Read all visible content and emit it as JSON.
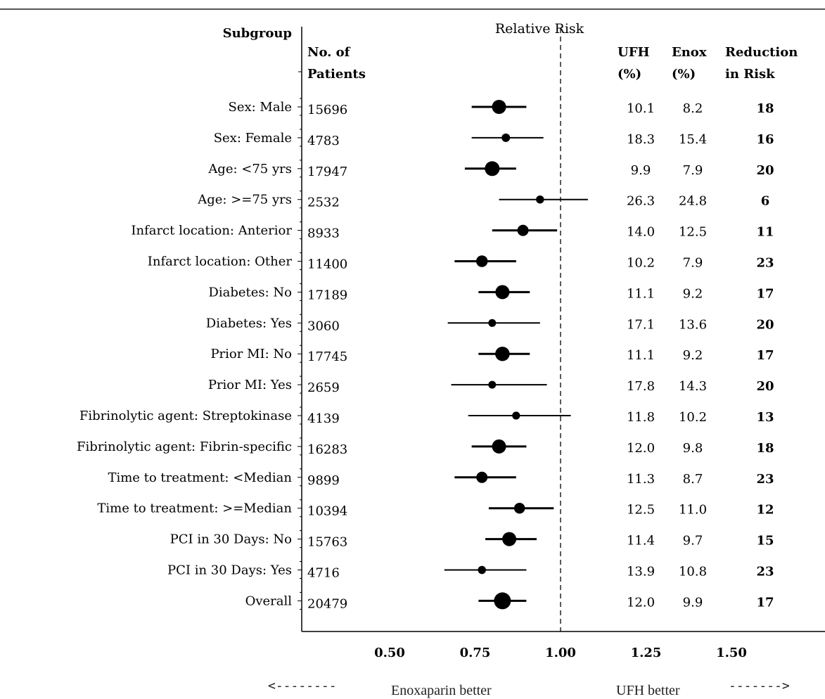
{
  "chart_data": {
    "type": "forest",
    "title": "Relative Risk",
    "headers": {
      "subgroup": "Subgroup",
      "patients_line1": "No. of",
      "patients_line2": "Patients",
      "ufh_line1": "UFH",
      "ufh_line2": "(%)",
      "enox_line1": "Enox",
      "enox_line2": "(%)",
      "reduction_line1": "Reduction",
      "reduction_line2": "in Risk"
    },
    "x_ticks": [
      "0.50",
      "0.75",
      "1.00",
      "1.25",
      "1.50"
    ],
    "x_tick_values": [
      0.5,
      0.75,
      1.0,
      1.25,
      1.5
    ],
    "xlim": [
      0.28,
      1.68
    ],
    "reference_line": 1.0,
    "footer": {
      "left_arrow": "<--------",
      "left_label": "Enoxaparin better",
      "right_label": "UFH  better",
      "right_arrow": "------->"
    },
    "rows": [
      {
        "label": "Sex: Male",
        "n": "15696",
        "rr": 0.82,
        "lo": 0.74,
        "hi": 0.9,
        "ufh": "10.1",
        "enox": "8.2",
        "reduction": "18",
        "weight": 1.0
      },
      {
        "label": "Sex: Female",
        "n": "4783",
        "rr": 0.84,
        "lo": 0.74,
        "hi": 0.95,
        "ufh": "18.3",
        "enox": "15.4",
        "reduction": "16",
        "weight": 0.2
      },
      {
        "label": "Age: <75 yrs",
        "n": "17947",
        "rr": 0.8,
        "lo": 0.72,
        "hi": 0.87,
        "ufh": "9.9",
        "enox": "7.9",
        "reduction": "20",
        "weight": 1.1
      },
      {
        "label": "Age: >=75 yrs",
        "n": "2532",
        "rr": 0.94,
        "lo": 0.82,
        "hi": 1.08,
        "ufh": "26.3",
        "enox": "24.8",
        "reduction": "6",
        "weight": 0.15
      },
      {
        "label": "Infarct location: Anterior",
        "n": "8933",
        "rr": 0.89,
        "lo": 0.8,
        "hi": 0.99,
        "ufh": "14.0",
        "enox": "12.5",
        "reduction": "11",
        "weight": 0.6
      },
      {
        "label": "Infarct location: Other",
        "n": "11400",
        "rr": 0.77,
        "lo": 0.69,
        "hi": 0.87,
        "ufh": "10.2",
        "enox": "7.9",
        "reduction": "23",
        "weight": 0.65
      },
      {
        "label": "Diabetes: No",
        "n": "17189",
        "rr": 0.83,
        "lo": 0.76,
        "hi": 0.91,
        "ufh": "11.1",
        "enox": "9.2",
        "reduction": "17",
        "weight": 1.0
      },
      {
        "label": "Diabetes: Yes",
        "n": "3060",
        "rr": 0.8,
        "lo": 0.67,
        "hi": 0.94,
        "ufh": "17.1",
        "enox": "13.6",
        "reduction": "20",
        "weight": 0.1
      },
      {
        "label": "Prior MI: No",
        "n": "17745",
        "rr": 0.83,
        "lo": 0.76,
        "hi": 0.91,
        "ufh": "11.1",
        "enox": "9.2",
        "reduction": "17",
        "weight": 1.05
      },
      {
        "label": "Prior MI: Yes",
        "n": "2659",
        "rr": 0.8,
        "lo": 0.68,
        "hi": 0.96,
        "ufh": "17.8",
        "enox": "14.3",
        "reduction": "20",
        "weight": 0.1
      },
      {
        "label": "Fibrinolytic agent: Streptokinase",
        "n": "4139",
        "rr": 0.87,
        "lo": 0.73,
        "hi": 1.03,
        "ufh": "11.8",
        "enox": "10.2",
        "reduction": "13",
        "weight": 0.12
      },
      {
        "label": "Fibrinolytic agent: Fibrin-specific",
        "n": "16283",
        "rr": 0.82,
        "lo": 0.74,
        "hi": 0.9,
        "ufh": "12.0",
        "enox": "9.8",
        "reduction": "18",
        "weight": 1.0
      },
      {
        "label": "Time to treatment: <Median",
        "n": "9899",
        "rr": 0.77,
        "lo": 0.69,
        "hi": 0.87,
        "ufh": "11.3",
        "enox": "8.7",
        "reduction": "23",
        "weight": 0.6
      },
      {
        "label": "Time to treatment: >=Median",
        "n": "10394",
        "rr": 0.88,
        "lo": 0.79,
        "hi": 0.98,
        "ufh": "12.5",
        "enox": "11.0",
        "reduction": "12",
        "weight": 0.55
      },
      {
        "label": "PCI in 30 Days: No",
        "n": "15763",
        "rr": 0.85,
        "lo": 0.78,
        "hi": 0.93,
        "ufh": "11.4",
        "enox": "9.7",
        "reduction": "15",
        "weight": 1.0
      },
      {
        "label": "PCI in 30 Days: Yes",
        "n": "4716",
        "rr": 0.77,
        "lo": 0.66,
        "hi": 0.9,
        "ufh": "13.9",
        "enox": "10.8",
        "reduction": "23",
        "weight": 0.15
      },
      {
        "label": "Overall",
        "n": "20479",
        "rr": 0.83,
        "lo": 0.76,
        "hi": 0.9,
        "ufh": "12.0",
        "enox": "9.9",
        "reduction": "17",
        "weight": 1.4
      }
    ]
  }
}
